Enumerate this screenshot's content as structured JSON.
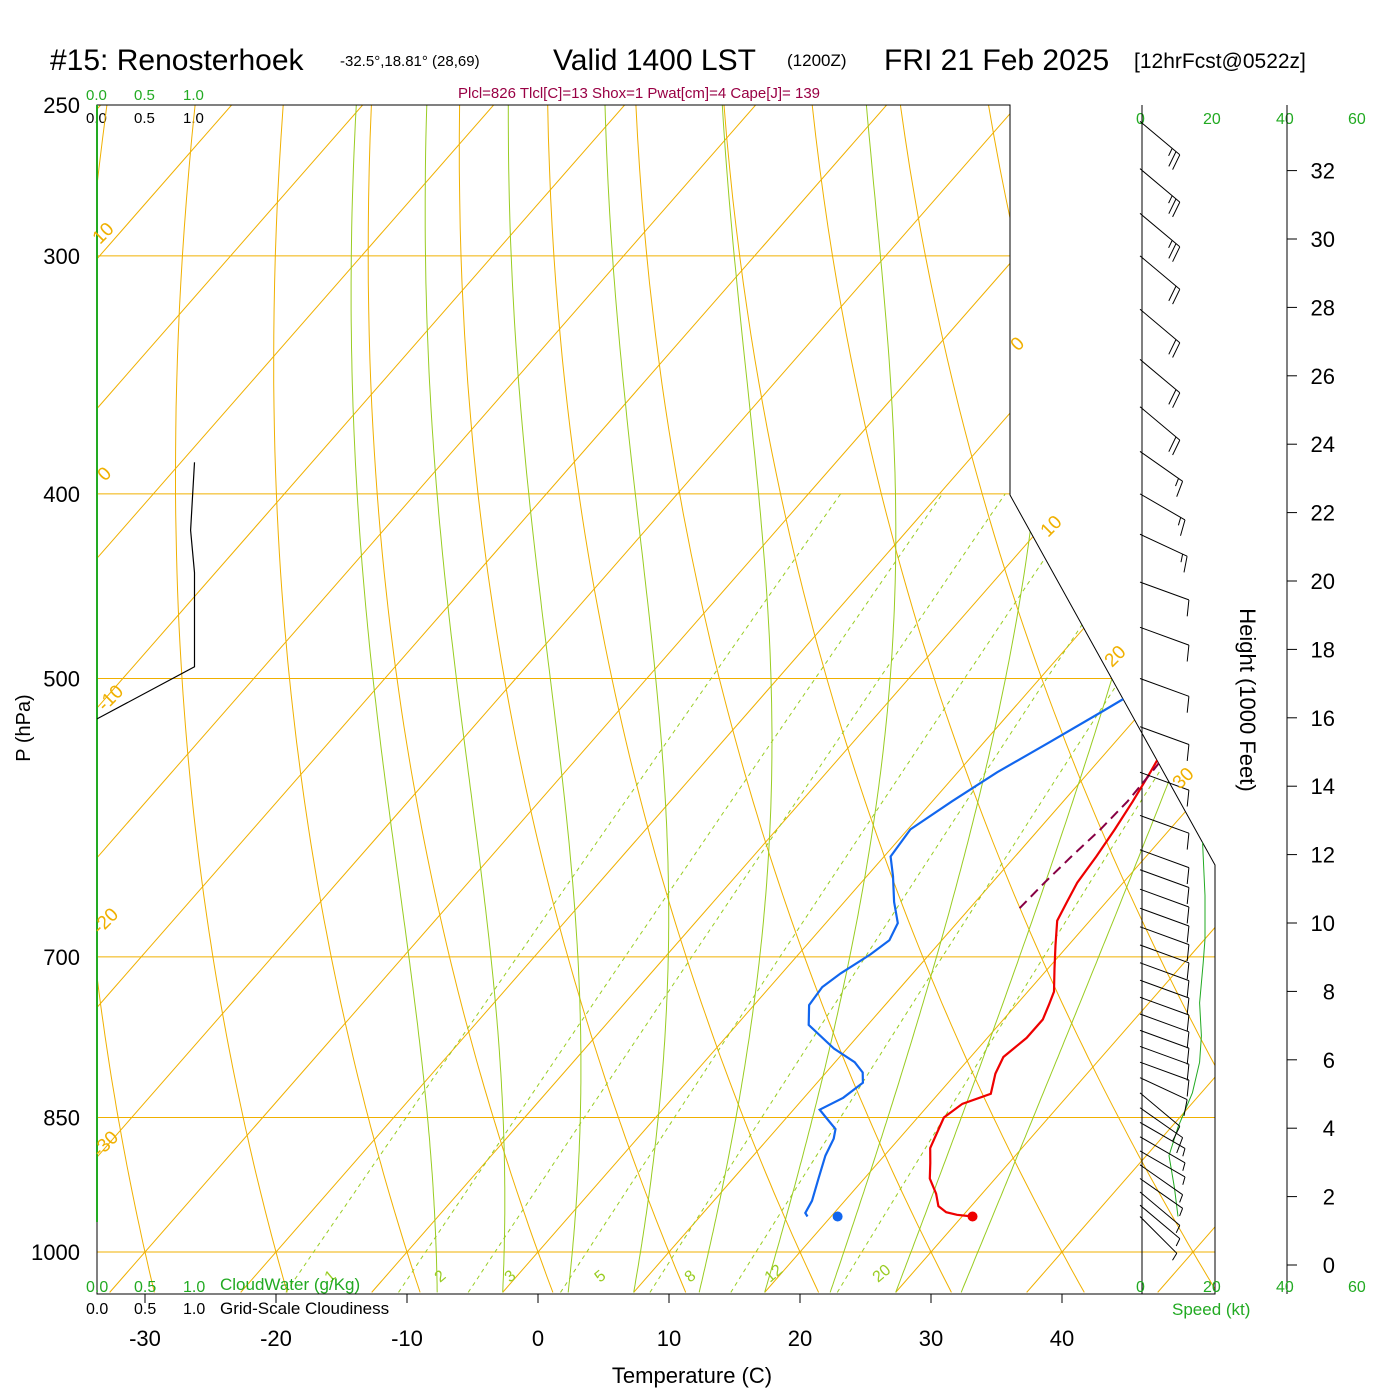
{
  "header": {
    "station": "#15: Renosterhoek",
    "coords": "-32.5°,18.81° (28,69)",
    "valid": "Valid 1400 LST",
    "zulu": "(1200Z)",
    "date": "FRI 21 Feb 2025",
    "forecast": "[12hrFcst@0522z]",
    "indices": "Plcl=826 Tlcl[C]=13 Shox=1 Pwat[cm]=4 Cape[J]= 139"
  },
  "colors": {
    "temperature": "#ee0000",
    "dewpoint": "#1166ee",
    "parcel": "#880044",
    "isobar": "#f0b000",
    "dry_adiabat": "#f0b000",
    "moist_adiabat": "#99cc22",
    "mixing_ratio": "#99cc22",
    "windspeed": "#22aa22",
    "cloud": "#000000",
    "scale_green": "#22aa22",
    "indices_text": "#990044"
  },
  "chart_data": {
    "type": "line",
    "subtype": "skew-T log-P sounding",
    "xlabel": "Temperature (C)",
    "ylabel": "P (hPa)",
    "y2label": "Height (1000 Feet)",
    "xlim": [
      -34,
      36
    ],
    "ylim_hpa": [
      1000,
      250
    ],
    "x_ticks": [
      -30,
      -20,
      -10,
      0,
      10,
      20,
      30,
      40
    ],
    "pressure_ticks": [
      250,
      300,
      400,
      500,
      700,
      850,
      1000
    ],
    "height_ticks": [
      0,
      2,
      4,
      6,
      8,
      10,
      12,
      14,
      16,
      18,
      20,
      22,
      24,
      26,
      28,
      30,
      32
    ],
    "dry_adiabat_labels": [
      "0",
      "10",
      "20",
      "30",
      "10",
      "0",
      "-10",
      "-20",
      "-30"
    ],
    "mixing_ratio_labels": [
      "1",
      "2",
      "3",
      "5",
      "8",
      "12",
      "20"
    ],
    "series": [
      {
        "name": "Temperature",
        "points": [
          [
            30.8,
            958
          ],
          [
            29.5,
            956
          ],
          [
            28.5,
            953
          ],
          [
            27.5,
            946
          ],
          [
            26.5,
            932
          ],
          [
            25,
            915
          ],
          [
            24,
            898
          ],
          [
            23,
            882
          ],
          [
            22.5,
            866
          ],
          [
            22,
            850
          ],
          [
            22.5,
            836
          ],
          [
            24,
            826
          ],
          [
            23.5,
            816
          ],
          [
            23,
            806
          ],
          [
            22.5,
            790
          ],
          [
            23,
            772
          ],
          [
            23,
            755
          ],
          [
            22.5,
            742
          ],
          [
            22,
            730
          ],
          [
            20.5,
            710
          ],
          [
            19,
            690
          ],
          [
            17.5,
            670
          ],
          [
            17,
            655
          ],
          [
            16.5,
            640
          ],
          [
            16.2,
            620
          ],
          [
            15.8,
            600
          ],
          [
            15.3,
            580
          ],
          [
            14.7,
            560
          ],
          [
            14,
            540
          ],
          [
            13.5,
            520
          ],
          [
            13,
            500
          ],
          [
            12.3,
            480
          ],
          [
            11.7,
            460
          ],
          [
            11,
            440
          ],
          [
            10,
            420
          ],
          [
            9,
            400
          ],
          [
            8.2,
            385
          ],
          [
            7.5,
            370
          ],
          [
            7,
            355
          ],
          [
            5.5,
            340
          ],
          [
            4,
            320
          ],
          [
            2.5,
            300
          ],
          [
            1.5,
            285
          ],
          [
            0.8,
            270
          ],
          [
            0,
            255
          ]
        ]
      },
      {
        "name": "Dewpoint",
        "points": [
          [
            18.2,
            958
          ],
          [
            17.8,
            954
          ],
          [
            17.5,
            940
          ],
          [
            16.5,
            915
          ],
          [
            15.5,
            890
          ],
          [
            15,
            872
          ],
          [
            14.5,
            862
          ],
          [
            13,
            850
          ],
          [
            12,
            842
          ],
          [
            13,
            830
          ],
          [
            13.5,
            815
          ],
          [
            12.8,
            805
          ],
          [
            11.5,
            795
          ],
          [
            9,
            782
          ],
          [
            5.5,
            760
          ],
          [
            4.2,
            742
          ],
          [
            4,
            726
          ],
          [
            4.5,
            714
          ],
          [
            5.5,
            698
          ],
          [
            6,
            686
          ],
          [
            5.5,
            672
          ],
          [
            3.8,
            655
          ],
          [
            2,
            635
          ],
          [
            0.5,
            620
          ],
          [
            0.2,
            600
          ],
          [
            1.5,
            580
          ],
          [
            3,
            560
          ],
          [
            5,
            540
          ],
          [
            7,
            520
          ],
          [
            8.5,
            505
          ],
          [
            8.7,
            495
          ],
          [
            6.8,
            475
          ],
          [
            5.5,
            455
          ],
          [
            4,
            435
          ],
          [
            2.5,
            418
          ],
          [
            1,
            400
          ],
          [
            -0.5,
            385
          ],
          [
            -2,
            375
          ],
          [
            -5,
            358
          ],
          [
            -9,
            340
          ],
          [
            -12,
            320
          ],
          [
            -13,
            305
          ],
          [
            -14.5,
            290
          ],
          [
            -15.5,
            270
          ],
          [
            -16.5,
            255
          ]
        ]
      },
      {
        "name": "Parcel",
        "dashed": true,
        "points": [
          [
            13.8,
            660
          ],
          [
            14,
            640
          ],
          [
            14.3,
            620
          ],
          [
            14.7,
            600
          ],
          [
            14.9,
            580
          ],
          [
            14.8,
            560
          ],
          [
            14.6,
            540
          ],
          [
            14.3,
            520
          ],
          [
            13.9,
            500
          ],
          [
            13.4,
            480
          ],
          [
            12.8,
            460
          ],
          [
            12.1,
            440
          ],
          [
            11.3,
            420
          ],
          [
            10.4,
            400
          ],
          [
            9.7,
            388
          ]
        ]
      },
      {
        "name": "Cloudiness",
        "points": [
          [
            0.75,
            385
          ],
          [
            0.72,
            418
          ],
          [
            0.75,
            440
          ],
          [
            0.75,
            470
          ],
          [
            0.75,
            493
          ],
          [
            0.0,
            525
          ]
        ]
      },
      {
        "name": "Wind speed",
        "points": [
          [
            10,
            958
          ],
          [
            9,
            925
          ],
          [
            7.5,
            890
          ],
          [
            10,
            860
          ],
          [
            14,
            825
          ],
          [
            16,
            795
          ],
          [
            16.5,
            770
          ],
          [
            16,
            740
          ],
          [
            17,
            705
          ],
          [
            17.5,
            685
          ],
          [
            17.5,
            650
          ],
          [
            17,
            620
          ],
          [
            16.5,
            590
          ],
          [
            16,
            560
          ],
          [
            15.5,
            530
          ],
          [
            15,
            495
          ],
          [
            14.5,
            460
          ],
          [
            14,
            420
          ],
          [
            14,
            378
          ],
          [
            17,
            355
          ],
          [
            21,
            330
          ],
          [
            26.5,
            305
          ],
          [
            29.5,
            285
          ],
          [
            31,
            268
          ],
          [
            30.5,
            255
          ]
        ]
      }
    ],
    "wind_barbs": [
      {
        "p": 958,
        "dir": 315,
        "spd": 5
      },
      {
        "p": 945,
        "dir": 310,
        "spd": 5
      },
      {
        "p": 930,
        "dir": 310,
        "spd": 5
      },
      {
        "p": 915,
        "dir": 305,
        "spd": 5
      },
      {
        "p": 900,
        "dir": 305,
        "spd": 5
      },
      {
        "p": 885,
        "dir": 300,
        "spd": 5
      },
      {
        "p": 870,
        "dir": 300,
        "spd": 5
      },
      {
        "p": 855,
        "dir": 300,
        "spd": 5
      },
      {
        "p": 840,
        "dir": 305,
        "spd": 10
      },
      {
        "p": 825,
        "dir": 310,
        "spd": 10
      },
      {
        "p": 810,
        "dir": 295,
        "spd": 10
      },
      {
        "p": 795,
        "dir": 290,
        "spd": 10
      },
      {
        "p": 780,
        "dir": 290,
        "spd": 10
      },
      {
        "p": 765,
        "dir": 290,
        "spd": 10
      },
      {
        "p": 750,
        "dir": 290,
        "spd": 10
      },
      {
        "p": 735,
        "dir": 290,
        "spd": 10
      },
      {
        "p": 720,
        "dir": 290,
        "spd": 10
      },
      {
        "p": 705,
        "dir": 290,
        "spd": 10
      },
      {
        "p": 690,
        "dir": 290,
        "spd": 10
      },
      {
        "p": 675,
        "dir": 290,
        "spd": 10
      },
      {
        "p": 660,
        "dir": 290,
        "spd": 10
      },
      {
        "p": 645,
        "dir": 290,
        "spd": 10
      },
      {
        "p": 630,
        "dir": 290,
        "spd": 10
      },
      {
        "p": 615,
        "dir": 290,
        "spd": 10
      },
      {
        "p": 590,
        "dir": 290,
        "spd": 10
      },
      {
        "p": 560,
        "dir": 290,
        "spd": 10
      },
      {
        "p": 530,
        "dir": 290,
        "spd": 10
      },
      {
        "p": 500,
        "dir": 290,
        "spd": 10
      },
      {
        "p": 470,
        "dir": 290,
        "spd": 10
      },
      {
        "p": 445,
        "dir": 290,
        "spd": 10
      },
      {
        "p": 420,
        "dir": 295,
        "spd": 15
      },
      {
        "p": 400,
        "dir": 300,
        "spd": 15
      },
      {
        "p": 380,
        "dir": 305,
        "spd": 15
      },
      {
        "p": 360,
        "dir": 310,
        "spd": 20
      },
      {
        "p": 340,
        "dir": 310,
        "spd": 20
      },
      {
        "p": 320,
        "dir": 310,
        "spd": 20
      },
      {
        "p": 300,
        "dir": 310,
        "spd": 20
      },
      {
        "p": 285,
        "dir": 310,
        "spd": 25
      },
      {
        "p": 270,
        "dir": 310,
        "spd": 25
      },
      {
        "p": 255,
        "dir": 310,
        "spd": 25
      }
    ],
    "windspeed_axis_label": "Speed (kt)",
    "windspeed_ticks": [
      "0",
      "20",
      "40",
      "60"
    ],
    "cloudwater_label": "CloudWater (g/Kg)",
    "cloudiness_label": "Grid-Scale Cloudiness",
    "fraction_ticks": [
      "0.0",
      "0.5",
      "1.0"
    ]
  }
}
